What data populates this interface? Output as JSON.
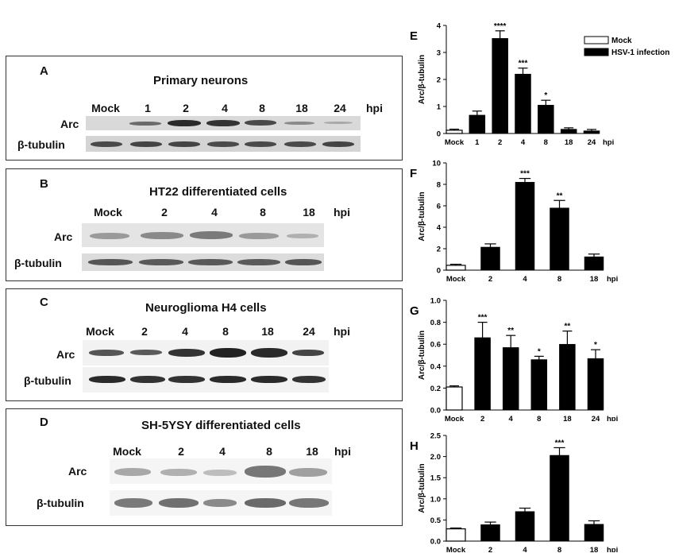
{
  "blots": [
    {
      "id": "A",
      "letter": "A",
      "title": "Primary neurons",
      "lanes": [
        "Mock",
        "1",
        "2",
        "4",
        "8",
        "18",
        "24"
      ],
      "hpi": "hpi",
      "rows": [
        "Arc",
        "β-tubulin"
      ]
    },
    {
      "id": "B",
      "letter": "B",
      "title": "HT22 differentiated  cells",
      "lanes": [
        "Mock",
        "2",
        "4",
        "8",
        "18"
      ],
      "hpi": "hpi",
      "rows": [
        "Arc",
        "β-tubulin"
      ]
    },
    {
      "id": "C",
      "letter": "C",
      "title": "Neuroglioma H4  cells",
      "lanes": [
        "Mock",
        "2",
        "4",
        "8",
        "18",
        "24"
      ],
      "hpi": "hpi",
      "rows": [
        "Arc",
        "β-tubulin"
      ]
    },
    {
      "id": "D",
      "letter": "D",
      "title": "SH-5YSY differentiated cells",
      "lanes": [
        "Mock",
        "2",
        "4",
        "8",
        "18"
      ],
      "hpi": "hpi",
      "rows": [
        "Arc",
        "β-tubulin"
      ]
    }
  ],
  "legend": {
    "mock": "Mock",
    "infection": "HSV-1 infection"
  },
  "chart_data": [
    {
      "panel": "E",
      "type": "bar",
      "categories": [
        "Mock",
        "1",
        "2",
        "4",
        "8",
        "18",
        "24"
      ],
      "values": [
        0.12,
        0.68,
        3.52,
        2.2,
        1.05,
        0.16,
        0.1
      ],
      "errors": [
        0.04,
        0.15,
        0.28,
        0.22,
        0.18,
        0.05,
        0.05
      ],
      "significance": [
        "",
        "",
        "****",
        "***",
        "*",
        "",
        ""
      ],
      "ylim": [
        0,
        4
      ],
      "yticks": [
        "0",
        "1",
        "2",
        "3",
        "4"
      ],
      "ylabel": "Arc/β-tubulin",
      "xunit": "hpi"
    },
    {
      "panel": "F",
      "type": "bar",
      "categories": [
        "Mock",
        "2",
        "4",
        "8",
        "18"
      ],
      "values": [
        0.45,
        2.15,
        8.2,
        5.8,
        1.25
      ],
      "errors": [
        0.1,
        0.3,
        0.35,
        0.7,
        0.25
      ],
      "significance": [
        "",
        "",
        "***",
        "**",
        ""
      ],
      "ylim": [
        0,
        10
      ],
      "yticks": [
        "0",
        "2",
        "4",
        "6",
        "8",
        "10"
      ],
      "ylabel": "Arc/β-tubulin",
      "xunit": "hpi"
    },
    {
      "panel": "G",
      "type": "bar",
      "categories": [
        "Mock",
        "2",
        "4",
        "8",
        "18",
        "24"
      ],
      "values": [
        0.21,
        0.66,
        0.57,
        0.46,
        0.6,
        0.47
      ],
      "errors": [
        0.01,
        0.14,
        0.11,
        0.03,
        0.12,
        0.08
      ],
      "significance": [
        "",
        "***",
        "**",
        "*",
        "**",
        "*"
      ],
      "ylim": [
        0,
        1
      ],
      "yticks": [
        "0.0",
        "0.2",
        "0.4",
        "0.6",
        "0.8",
        "1.0"
      ],
      "ylabel": "Arc/β-tubulin",
      "xunit": "hpi"
    },
    {
      "panel": "H",
      "type": "bar",
      "categories": [
        "Mock",
        "2",
        "4",
        "8",
        "18"
      ],
      "values": [
        0.29,
        0.39,
        0.7,
        2.03,
        0.4
      ],
      "errors": [
        0.02,
        0.06,
        0.08,
        0.18,
        0.08
      ],
      "significance": [
        "",
        "",
        "",
        "***",
        ""
      ],
      "ylim": [
        0,
        2.5
      ],
      "yticks": [
        "0.0",
        "0.5",
        "1.0",
        "1.5",
        "2.0",
        "2.5"
      ],
      "ylabel": "Arc/β-tubulin",
      "xunit": "hpi"
    }
  ]
}
